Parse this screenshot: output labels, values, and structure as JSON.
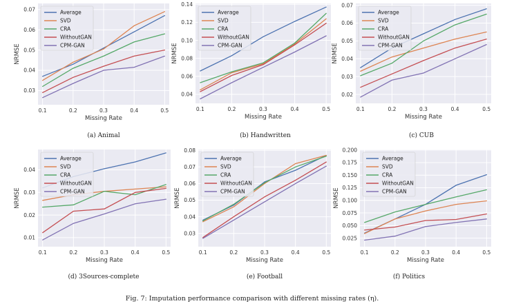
{
  "figure_caption": "Fig. 7: Imputation performance comparison with different missing rates (η).",
  "colors": {
    "Average": "#4c72b0",
    "SVD": "#dd8452",
    "CRA": "#55a868",
    "WithoutGAN": "#c44e52",
    "CPM-GAN": "#8172b3",
    "background": "#eaeaf2",
    "grid": "#ffffff"
  },
  "chart_data": [
    {
      "type": "line",
      "caption": "(a) Animal",
      "xlabel": "Missing Rate",
      "ylabel": "NRMSE",
      "x": [
        0.1,
        0.2,
        0.3,
        0.4,
        0.5
      ],
      "xticks": [
        "0.1",
        "0.2",
        "0.3",
        "0.4",
        "0.5"
      ],
      "yticks": [
        "0.03",
        "0.04",
        "0.05",
        "0.06",
        "0.07"
      ],
      "ylim": [
        0.023,
        0.073
      ],
      "grid": true,
      "legend": "top-left",
      "series": [
        {
          "name": "Average",
          "values": [
            0.037,
            0.043,
            0.051,
            0.059,
            0.067
          ]
        },
        {
          "name": "SVD",
          "values": [
            0.035,
            0.044,
            0.0505,
            0.062,
            0.069
          ]
        },
        {
          "name": "CRA",
          "values": [
            0.032,
            0.041,
            0.047,
            0.054,
            0.058
          ]
        },
        {
          "name": "WithoutGAN",
          "values": [
            0.029,
            0.0365,
            0.042,
            0.047,
            0.05
          ]
        },
        {
          "name": "CPM-GAN",
          "values": [
            0.0265,
            0.0335,
            0.04,
            0.0415,
            0.047
          ]
        }
      ]
    },
    {
      "type": "line",
      "caption": "(b) Handwritten",
      "xlabel": "Missing Rate",
      "ylabel": "NRMSE",
      "x": [
        0.1,
        0.2,
        0.3,
        0.4,
        0.5
      ],
      "xticks": [
        "0.1",
        "0.2",
        "0.3",
        "0.4",
        "0.5"
      ],
      "yticks": [
        "0.04",
        "0.06",
        "0.08",
        "0.10",
        "0.12",
        "0.14"
      ],
      "ylim": [
        0.03,
        0.141
      ],
      "grid": true,
      "legend": "top-left",
      "series": [
        {
          "name": "Average",
          "values": [
            0.066,
            0.083,
            0.104,
            0.121,
            0.137
          ]
        },
        {
          "name": "SVD",
          "values": [
            0.045,
            0.064,
            0.074,
            0.096,
            0.124
          ]
        },
        {
          "name": "CRA",
          "values": [
            0.053,
            0.065,
            0.075,
            0.097,
            0.13
          ]
        },
        {
          "name": "WithoutGAN",
          "values": [
            0.043,
            0.061,
            0.073,
            0.095,
            0.119
          ]
        },
        {
          "name": "CPM-GAN",
          "values": [
            0.035,
            0.053,
            0.07,
            0.087,
            0.105
          ]
        }
      ]
    },
    {
      "type": "line",
      "caption": "(c) CUB",
      "xlabel": "Missing Rate",
      "ylabel": "NRMSE",
      "x": [
        0.1,
        0.2,
        0.3,
        0.4,
        0.5
      ],
      "xticks": [
        "0.1",
        "0.2",
        "0.3",
        "0.4",
        "0.5"
      ],
      "yticks": [
        "0.02",
        "0.03",
        "0.04",
        "0.05",
        "0.06",
        "0.07"
      ],
      "ylim": [
        0.015,
        0.071
      ],
      "grid": true,
      "legend": "top-left",
      "series": [
        {
          "name": "Average",
          "values": [
            0.035,
            0.046,
            0.054,
            0.062,
            0.068
          ]
        },
        {
          "name": "SVD",
          "values": [
            0.033,
            0.041,
            0.046,
            0.051,
            0.055
          ]
        },
        {
          "name": "CRA",
          "values": [
            0.0305,
            0.0375,
            0.05,
            0.059,
            0.065
          ]
        },
        {
          "name": "WithoutGAN",
          "values": [
            0.024,
            0.0315,
            0.039,
            0.046,
            0.051
          ]
        },
        {
          "name": "CPM-GAN",
          "values": [
            0.0185,
            0.028,
            0.032,
            0.04,
            0.048
          ]
        }
      ]
    },
    {
      "type": "line",
      "caption": "(d) 3Sources-complete",
      "xlabel": "Missing Rate",
      "ylabel": "NRMSE",
      "x": [
        0.1,
        0.2,
        0.3,
        0.4,
        0.5
      ],
      "xticks": [
        "0.1",
        "0.2",
        "0.3",
        "0.4",
        "0.5"
      ],
      "yticks": [
        "0.01",
        "0.02",
        "0.03",
        "0.04"
      ],
      "ylim": [
        0.006,
        0.049
      ],
      "grid": true,
      "legend": "top-left",
      "series": [
        {
          "name": "Average",
          "values": [
            0.032,
            0.037,
            0.0405,
            0.0435,
            0.0475
          ]
        },
        {
          "name": "SVD",
          "values": [
            0.0265,
            0.029,
            0.0305,
            0.0315,
            0.0325
          ]
        },
        {
          "name": "CRA",
          "values": [
            0.0235,
            0.0245,
            0.0305,
            0.029,
            0.0335
          ]
        },
        {
          "name": "WithoutGAN",
          "values": [
            0.0122,
            0.0217,
            0.0227,
            0.03,
            0.0318
          ]
        },
        {
          "name": "CPM-GAN",
          "values": [
            0.009,
            0.0163,
            0.0205,
            0.025,
            0.027
          ]
        }
      ]
    },
    {
      "type": "line",
      "caption": "(e) Football",
      "xlabel": "Missing Rate",
      "ylabel": "NRMSE",
      "x": [
        0.1,
        0.2,
        0.3,
        0.4,
        0.5
      ],
      "xticks": [
        "0.1",
        "0.2",
        "0.3",
        "0.4",
        "0.5"
      ],
      "yticks": [
        "0.03",
        "0.04",
        "0.05",
        "0.06",
        "0.07",
        "0.08"
      ],
      "ylim": [
        0.022,
        0.0805
      ],
      "grid": true,
      "legend": "top-left",
      "series": [
        {
          "name": "Average",
          "values": [
            0.038,
            0.047,
            0.061,
            0.068,
            0.077
          ]
        },
        {
          "name": "SVD",
          "values": [
            0.037,
            0.046,
            0.06,
            0.072,
            0.077
          ]
        },
        {
          "name": "CRA",
          "values": [
            0.0375,
            0.0475,
            0.0605,
            0.07,
            0.0765
          ]
        },
        {
          "name": "WithoutGAN",
          "values": [
            0.0275,
            0.04,
            0.052,
            0.062,
            0.073
          ]
        },
        {
          "name": "CPM-GAN",
          "values": [
            0.027,
            0.038,
            0.049,
            0.06,
            0.0705
          ]
        }
      ]
    },
    {
      "type": "line",
      "caption": "(f) Politics",
      "xlabel": "Missing Rate",
      "ylabel": "NRMSE",
      "x": [
        0.1,
        0.2,
        0.3,
        0.4,
        0.5
      ],
      "xticks": [
        "0.1",
        "0.2",
        "0.3",
        "0.4",
        "0.5"
      ],
      "yticks": [
        "0.025",
        "0.050",
        "0.075",
        "0.100",
        "0.125",
        "0.150",
        "0.175",
        "0.200"
      ],
      "ylim": [
        0.008,
        0.201
      ],
      "grid": true,
      "legend": "top-left",
      "series": [
        {
          "name": "Average",
          "values": [
            0.035,
            0.063,
            0.092,
            0.13,
            0.151
          ]
        },
        {
          "name": "SVD",
          "values": [
            0.034,
            0.063,
            0.079,
            0.092,
            0.099
          ]
        },
        {
          "name": "CRA",
          "values": [
            0.056,
            0.077,
            0.092,
            0.107,
            0.121
          ]
        },
        {
          "name": "WithoutGAN",
          "values": [
            0.041,
            0.047,
            0.06,
            0.062,
            0.073
          ]
        },
        {
          "name": "CPM-GAN",
          "values": [
            0.021,
            0.029,
            0.048,
            0.056,
            0.063
          ]
        }
      ]
    }
  ]
}
